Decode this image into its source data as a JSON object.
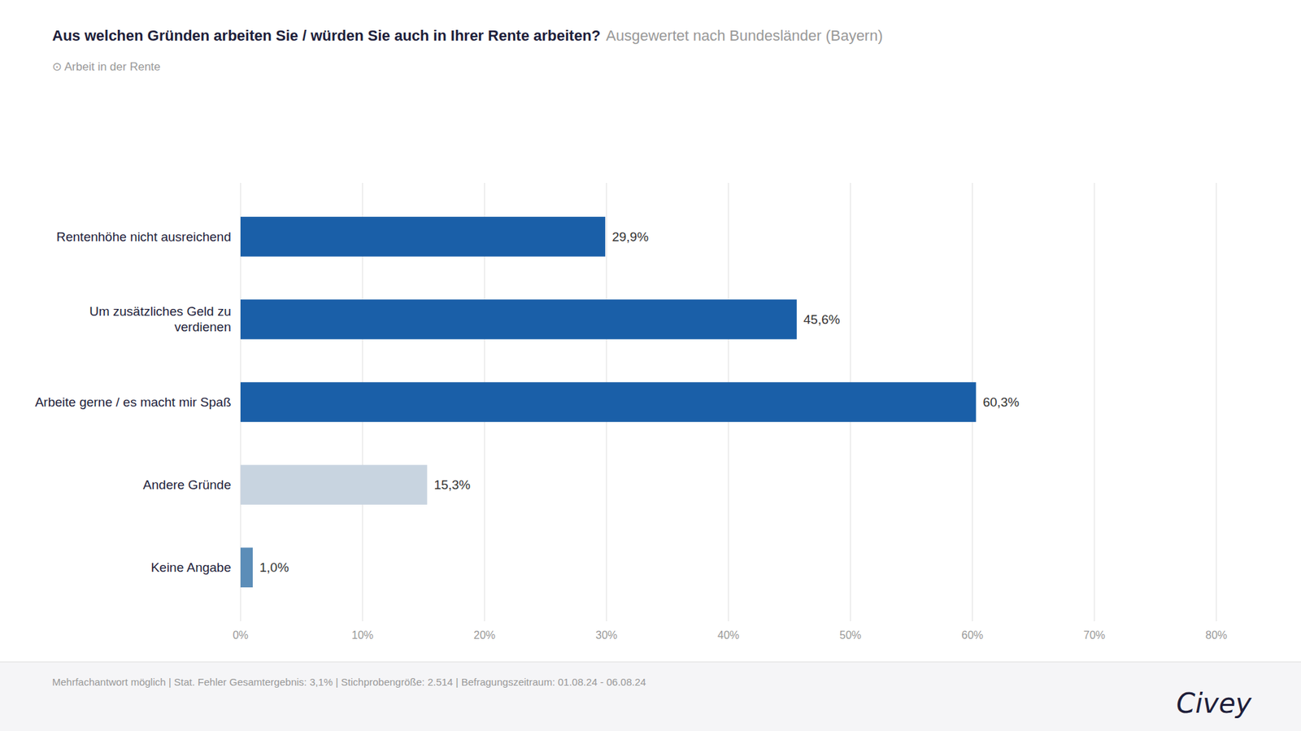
{
  "chart_data": {
    "type": "bar",
    "orientation": "horizontal",
    "title": "Aus welchen Gründen arbeiten Sie / würden Sie auch in Ihrer Rente arbeiten?",
    "subtitle": "⊙ Arbeit in der Rente",
    "annotations": [
      "Ausgewertet nach Bundesländer (Bayern)",
      "Mehrfachantwort möglich | Stat. Fehler Gesamtergebnis: 3,1% | Stichprobengröße: 2.514 | Befragungszeitraum: 01.08.24 - 06.08.24",
      "Civey"
    ],
    "categories": [
      "Rentenhöhe nicht ausreichend",
      "Um zusätzliches Geld zu\nverdienen",
      "Arbeite gerne / es macht mir Spaß",
      "Andere Gründe",
      "Keine Angabe"
    ],
    "values": [
      29.9,
      45.6,
      60.3,
      15.3,
      1.0
    ],
    "value_labels": [
      "29,9%",
      "45,6%",
      "60,3%",
      "15,3%",
      "1,0%"
    ],
    "colors": [
      "#1a5fa8",
      "#1a5fa8",
      "#1a5fa8",
      "#c8d4e0",
      "#5b8db8"
    ],
    "xlim": [
      0,
      80
    ],
    "xticks": [
      {
        "value": 0,
        "label": "0%"
      },
      {
        "value": 10,
        "label": "10%"
      },
      {
        "value": 20,
        "label": "20%"
      },
      {
        "value": 30,
        "label": "30%"
      },
      {
        "value": 40,
        "label": "40%"
      },
      {
        "value": 50,
        "label": "50%"
      },
      {
        "value": 60,
        "label": "60%"
      },
      {
        "value": 70,
        "label": "70%"
      },
      {
        "value": 80,
        "label": "80%"
      }
    ],
    "grid": true,
    "data_labels": true
  }
}
